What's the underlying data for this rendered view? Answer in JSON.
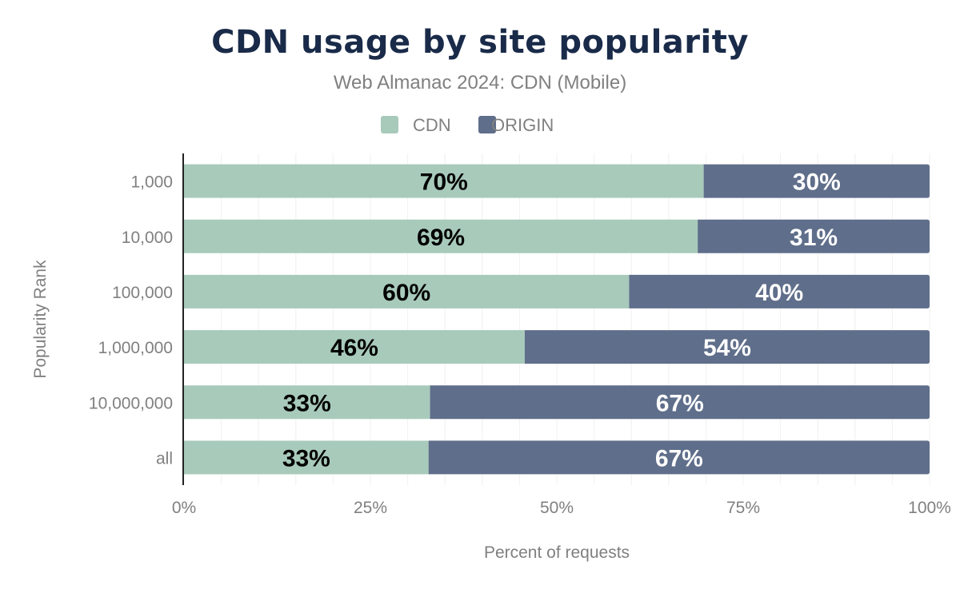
{
  "chart_data": {
    "type": "bar",
    "orientation": "horizontal",
    "stacked": true,
    "title": "CDN usage by site popularity",
    "subtitle": "Web Almanac 2024: CDN  (Mobile)",
    "xlabel": "Percent of requests",
    "ylabel": "Popularity Rank",
    "xlim": [
      0,
      100
    ],
    "x_ticks": [
      "0%",
      "25%",
      "50%",
      "75%",
      "100%"
    ],
    "grid": true,
    "legend_placement": "top",
    "categories": [
      "1,000",
      "10,000",
      "100,000",
      "1,000,000",
      "10,000,000",
      "all"
    ],
    "series": [
      {
        "name": "CDN",
        "color": "#a8cabb",
        "label_color": "#000000",
        "values": [
          69.7,
          68.9,
          59.7,
          45.7,
          33.0,
          32.8
        ],
        "labels": [
          "70%",
          "69%",
          "60%",
          "46%",
          "33%",
          "33%"
        ]
      },
      {
        "name": "ORIGIN",
        "color": "#5f6e8a",
        "label_color": "#ffffff",
        "values": [
          30.3,
          31.1,
          40.3,
          54.3,
          67.0,
          67.2
        ],
        "labels": [
          "30%",
          "31%",
          "40%",
          "54%",
          "67%",
          "67%"
        ]
      }
    ]
  }
}
